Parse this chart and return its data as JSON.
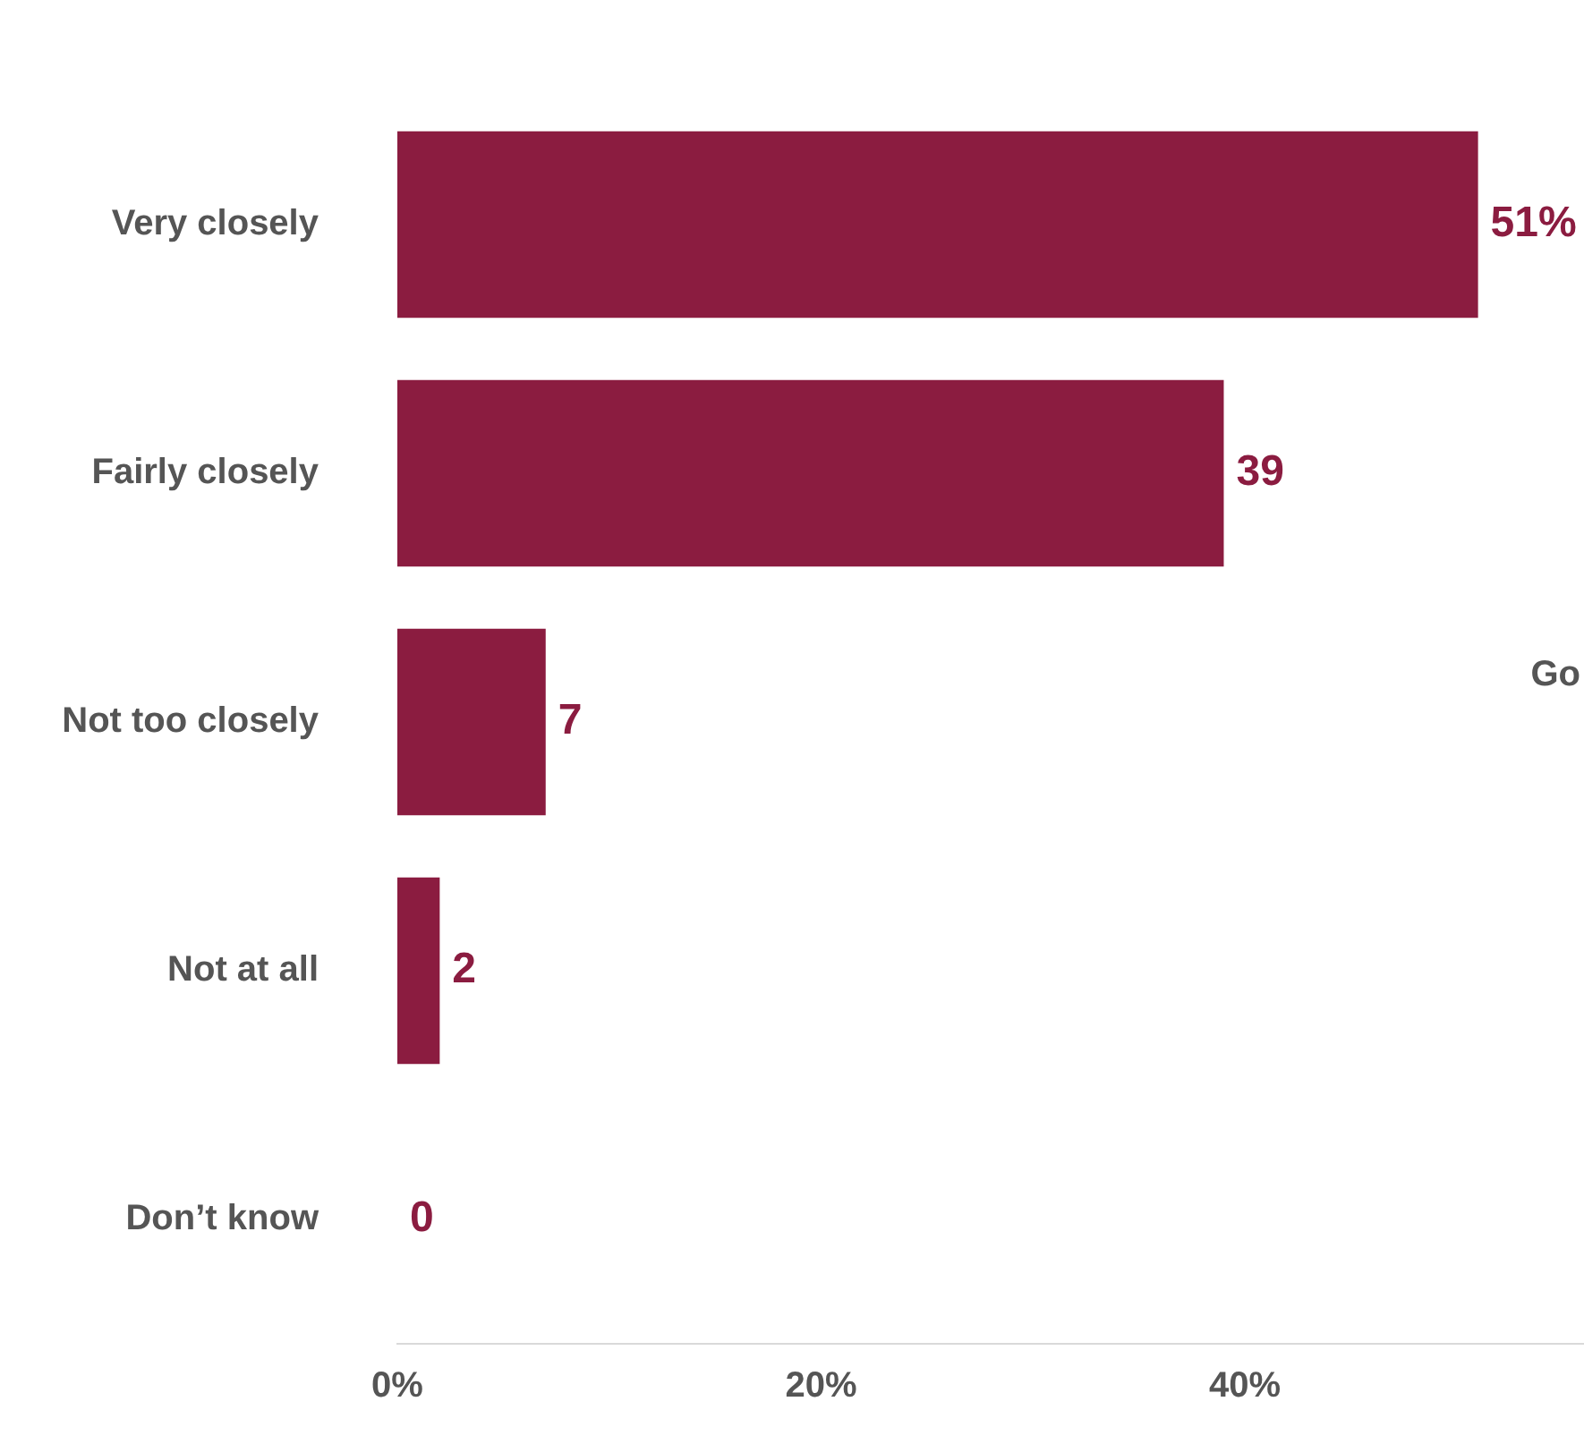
{
  "chart_data": {
    "type": "bar",
    "orientation": "horizontal",
    "categories": [
      "Very closely",
      "Fairly closely",
      "Not too closely",
      "Not at all",
      "Don’t know"
    ],
    "values": [
      51,
      39,
      7,
      2,
      0
    ],
    "color": "#8b1c40",
    "value_labels": [
      "51%",
      "39",
      "7",
      "2",
      "0"
    ],
    "xlim": [
      0,
      56
    ],
    "xticks": [
      {
        "value": 0,
        "label": "0%"
      },
      {
        "value": 20,
        "label": "20%"
      },
      {
        "value": 40,
        "label": "40%"
      }
    ],
    "annotations": [
      "Go"
    ]
  }
}
